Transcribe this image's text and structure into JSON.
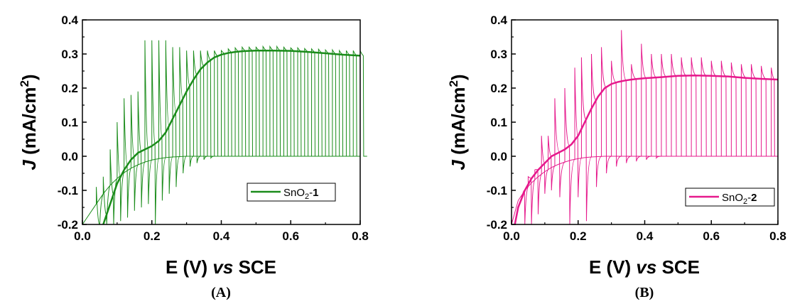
{
  "colors": {
    "panel_a": "#1a8c1a",
    "panel_b": "#e6198c",
    "axis": "#000000"
  },
  "chart_data": [
    {
      "type": "line",
      "panel_label": "(A)",
      "xlabel_main": "E (V) ",
      "xlabel_italic": "vs",
      "xlabel_tail": " SCE",
      "ylabel_italic": "J",
      "ylabel_main": " (mA/cm",
      "ylabel_sup": "2",
      "ylabel_end": ")",
      "xlim": [
        0.0,
        0.8
      ],
      "ylim": [
        -0.2,
        0.4
      ],
      "x_ticks": [
        "0.0",
        "0.2",
        "0.4",
        "0.6",
        "0.8"
      ],
      "y_ticks": [
        "-0.2",
        "-0.1",
        "0.0",
        "0.1",
        "0.2",
        "0.3",
        "0.4"
      ],
      "legend": {
        "prefix": "SnO",
        "sub": "2",
        "mid": "-",
        "bold": "1",
        "position": "lower-right"
      },
      "series": [
        {
          "role": "illuminated-average",
          "x": [
            0.06,
            0.08,
            0.1,
            0.12,
            0.14,
            0.16,
            0.18,
            0.2,
            0.22,
            0.24,
            0.26,
            0.28,
            0.3,
            0.32,
            0.34,
            0.36,
            0.38,
            0.4,
            0.42,
            0.44,
            0.46,
            0.48,
            0.5,
            0.55,
            0.6,
            0.65,
            0.7,
            0.75,
            0.8
          ],
          "y": [
            -0.2,
            -0.14,
            -0.08,
            -0.04,
            -0.01,
            0.01,
            0.02,
            0.03,
            0.045,
            0.07,
            0.11,
            0.15,
            0.19,
            0.225,
            0.255,
            0.275,
            0.29,
            0.298,
            0.303,
            0.306,
            0.308,
            0.309,
            0.31,
            0.31,
            0.309,
            0.306,
            0.302,
            0.298,
            0.295
          ]
        },
        {
          "role": "dark",
          "x": [
            0.0,
            0.02,
            0.04,
            0.06,
            0.08,
            0.1,
            0.12,
            0.14,
            0.16,
            0.18,
            0.2,
            0.22,
            0.24,
            0.26,
            0.28,
            0.3,
            0.32,
            0.34,
            0.36,
            0.38,
            0.4,
            0.45,
            0.5,
            0.6,
            0.7,
            0.8
          ],
          "y": [
            -0.2,
            -0.17,
            -0.14,
            -0.11,
            -0.085,
            -0.065,
            -0.048,
            -0.035,
            -0.025,
            -0.017,
            -0.011,
            -0.007,
            -0.004,
            -0.002,
            -0.001,
            0.0,
            0.0,
            0.0,
            0.0,
            0.0,
            0.0,
            0.0,
            0.0,
            0.0,
            0.0,
            0.0
          ]
        },
        {
          "role": "chopped",
          "chop_x": [
            0.04,
            0.06,
            0.08,
            0.1,
            0.12,
            0.14,
            0.16,
            0.18,
            0.2,
            0.22,
            0.24,
            0.26,
            0.28,
            0.3,
            0.32,
            0.34,
            0.36,
            0.38,
            0.4,
            0.42,
            0.44,
            0.46,
            0.48,
            0.5,
            0.52,
            0.54,
            0.56,
            0.58,
            0.6,
            0.62,
            0.64,
            0.66,
            0.68,
            0.7,
            0.72,
            0.74,
            0.76,
            0.78,
            0.8
          ],
          "on_spike": [
            -0.09,
            -0.06,
            0.02,
            0.1,
            0.17,
            0.18,
            0.19,
            0.34,
            0.34,
            0.34,
            0.34,
            0.32,
            0.32,
            0.31,
            0.31,
            0.31,
            0.31,
            0.31,
            0.31,
            0.315,
            0.318,
            0.32,
            0.32,
            0.32,
            0.322,
            0.322,
            0.322,
            0.32,
            0.318,
            0.318,
            0.316,
            0.315,
            0.314,
            0.312,
            0.312,
            0.31,
            0.31,
            0.31,
            0.31
          ],
          "off_spike": [
            -0.2,
            -0.2,
            -0.2,
            -0.19,
            -0.18,
            -0.16,
            -0.15,
            -0.14,
            -0.2,
            -0.13,
            -0.11,
            -0.09,
            -0.05,
            -0.03,
            -0.02,
            -0.01,
            -0.005,
            0.0,
            0.0,
            0.0,
            0.0,
            0.0,
            0.0,
            0.0,
            0.0,
            0.0,
            0.0,
            0.0,
            0.0,
            0.0,
            0.0,
            0.0,
            0.0,
            0.0,
            0.0,
            0.0,
            0.0,
            0.0,
            0.0
          ]
        }
      ]
    },
    {
      "type": "line",
      "panel_label": "(B)",
      "xlabel_main": "E (V) ",
      "xlabel_italic": "vs",
      "xlabel_tail": " SCE",
      "ylabel_italic": "J",
      "ylabel_main": " (mA/cm",
      "ylabel_sup": "2",
      "ylabel_end": ")",
      "xlim": [
        0.0,
        0.8
      ],
      "ylim": [
        -0.2,
        0.4
      ],
      "x_ticks": [
        "0.0",
        "0.2",
        "0.4",
        "0.6",
        "0.8"
      ],
      "y_ticks": [
        "-0.2",
        "-0.1",
        "0.0",
        "0.1",
        "0.2",
        "0.3",
        "0.4"
      ],
      "legend": {
        "prefix": "SnO",
        "sub": "2",
        "mid": "-",
        "bold": "2",
        "position": "lower-right"
      },
      "series": [
        {
          "role": "illuminated-average",
          "x": [
            0.01,
            0.02,
            0.04,
            0.06,
            0.08,
            0.1,
            0.12,
            0.14,
            0.16,
            0.18,
            0.2,
            0.22,
            0.24,
            0.26,
            0.28,
            0.3,
            0.32,
            0.34,
            0.36,
            0.38,
            0.4,
            0.45,
            0.5,
            0.55,
            0.6,
            0.65,
            0.7,
            0.75,
            0.8
          ],
          "y": [
            -0.2,
            -0.15,
            -0.1,
            -0.065,
            -0.04,
            -0.02,
            0.0,
            0.01,
            0.02,
            0.035,
            0.06,
            0.1,
            0.14,
            0.175,
            0.2,
            0.212,
            0.218,
            0.222,
            0.225,
            0.227,
            0.229,
            0.232,
            0.236,
            0.237,
            0.236,
            0.234,
            0.23,
            0.227,
            0.225
          ]
        },
        {
          "role": "dark",
          "x": [
            0.0,
            0.02,
            0.04,
            0.06,
            0.08,
            0.1,
            0.12,
            0.14,
            0.16,
            0.18,
            0.2,
            0.22,
            0.24,
            0.26,
            0.28,
            0.3,
            0.32,
            0.34,
            0.36,
            0.38,
            0.4,
            0.5,
            0.6,
            0.7,
            0.8
          ],
          "y": [
            -0.2,
            -0.13,
            -0.1,
            -0.078,
            -0.06,
            -0.045,
            -0.033,
            -0.024,
            -0.017,
            -0.011,
            -0.007,
            -0.004,
            -0.002,
            -0.001,
            0.0,
            0.0,
            0.0,
            0.0,
            0.0,
            0.0,
            0.0,
            0.0,
            0.0,
            0.0,
            0.0
          ]
        },
        {
          "role": "chopped",
          "chop_x": [
            0.03,
            0.05,
            0.07,
            0.09,
            0.11,
            0.13,
            0.16,
            0.19,
            0.21,
            0.24,
            0.27,
            0.3,
            0.33,
            0.36,
            0.39,
            0.42,
            0.45,
            0.48,
            0.51,
            0.54,
            0.57,
            0.6,
            0.63,
            0.66,
            0.69,
            0.72,
            0.75,
            0.78
          ],
          "on_spike": [
            -0.13,
            -0.06,
            -0.04,
            0.06,
            0.06,
            0.17,
            0.2,
            0.26,
            0.29,
            0.3,
            0.32,
            0.28,
            0.37,
            0.27,
            0.33,
            0.3,
            0.3,
            0.3,
            0.29,
            0.29,
            0.29,
            0.28,
            0.28,
            0.275,
            0.27,
            0.27,
            0.265,
            0.26
          ],
          "off_spike": [
            -0.2,
            -0.2,
            -0.17,
            -0.11,
            -0.1,
            -0.12,
            -0.2,
            -0.12,
            -0.19,
            -0.09,
            -0.05,
            -0.03,
            -0.02,
            -0.015,
            -0.01,
            -0.005,
            0.0,
            0.0,
            0.0,
            0.0,
            0.0,
            0.0,
            0.0,
            0.0,
            0.0,
            0.0,
            0.0,
            0.0
          ]
        }
      ]
    }
  ]
}
